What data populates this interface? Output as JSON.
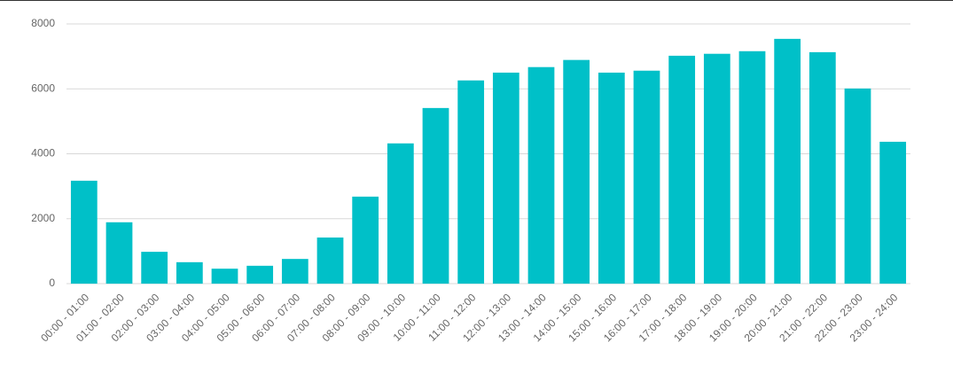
{
  "chart_data": {
    "type": "bar",
    "categories": [
      "00:00 - 01:00",
      "01:00 - 02:00",
      "02:00 - 03:00",
      "03:00 - 04:00",
      "04:00 - 05:00",
      "05:00 - 06:00",
      "06:00 - 07:00",
      "07:00 - 08:00",
      "08:00 - 09:00",
      "09:00 - 10:00",
      "10:00 - 11:00",
      "11:00 - 12:00",
      "12:00 - 13:00",
      "13:00 - 14:00",
      "14:00 - 15:00",
      "15:00 - 16:00",
      "16:00 - 17:00",
      "17:00 - 18:00",
      "18:00 - 19:00",
      "19:00 - 20:00",
      "20:00 - 21:00",
      "21:00 - 22:00",
      "22:00 - 23:00",
      "23:00 - 24:00"
    ],
    "values": [
      3170,
      1890,
      980,
      660,
      460,
      550,
      760,
      1420,
      2680,
      4320,
      5410,
      6260,
      6500,
      6670,
      6890,
      6500,
      6560,
      7020,
      7080,
      7160,
      7540,
      7130,
      6010,
      4370
    ],
    "color": "#00c0c8",
    "ylim": [
      0,
      8000
    ],
    "yticks": [
      0,
      2000,
      4000,
      6000,
      8000
    ],
    "grid": true
  }
}
